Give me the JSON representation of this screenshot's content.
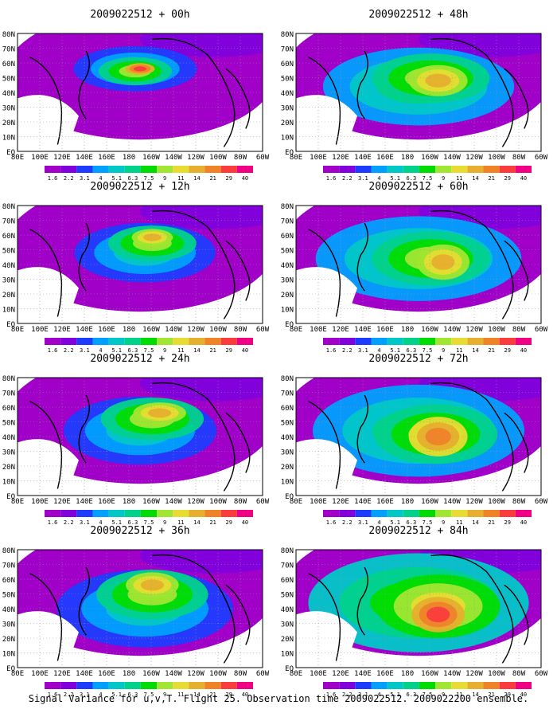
{
  "figure": {
    "caption": "Signal Variance for u,v,T. Flight 25. Observation time 2009022512. 2009022200 ensemble."
  },
  "axis": {
    "lat_labels": [
      "80N",
      "70N",
      "60N",
      "50N",
      "40N",
      "30N",
      "20N",
      "10N",
      "EQ"
    ],
    "lon_labels": [
      "80E",
      "100E",
      "120E",
      "140E",
      "160E",
      "180",
      "160W",
      "140W",
      "120W",
      "100W",
      "80W",
      "60W"
    ]
  },
  "colorbar": {
    "labels": [
      "1.6",
      "2.2",
      "3.1",
      "4",
      "5.1",
      "6.3",
      "7.5",
      "9",
      "11",
      "14",
      "21",
      "29",
      "40"
    ],
    "colors": [
      "#a000c8",
      "#8200dc",
      "#1e3cff",
      "#00a0ff",
      "#00c8c8",
      "#00d28c",
      "#00dc00",
      "#a0e632",
      "#e6dc32",
      "#e6af2d",
      "#f08228",
      "#fa3c3c",
      "#f00082"
    ]
  },
  "panels": [
    {
      "id": "p00",
      "title": "2009022512 + 00h"
    },
    {
      "id": "p48",
      "title": "2009022512 + 48h"
    },
    {
      "id": "p12",
      "title": "2009022512 + 12h"
    },
    {
      "id": "p60",
      "title": "2009022512 + 60h"
    },
    {
      "id": "p24",
      "title": "2009022512 + 24h"
    },
    {
      "id": "p72",
      "title": "2009022512 + 72h"
    },
    {
      "id": "p36",
      "title": "2009022512 + 36h"
    },
    {
      "id": "p84",
      "title": "2009022512 + 84h"
    }
  ]
}
